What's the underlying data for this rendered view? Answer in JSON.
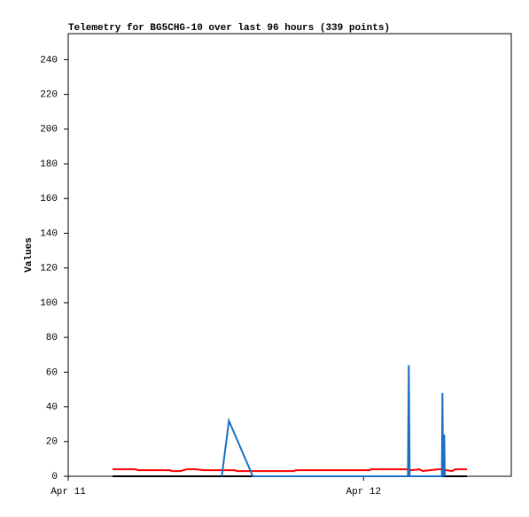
{
  "chart_data": {
    "type": "line",
    "title": "Telemetry for BG5CHG-10 over last 96 hours (339 points)",
    "y_label": "Values",
    "xlim": [
      0,
      1.5
    ],
    "xticks": [
      {
        "value": 0,
        "label": "Apr 11"
      },
      {
        "value": 1,
        "label": "Apr 12"
      }
    ],
    "ylim": [
      0,
      255
    ],
    "yticks": [
      0,
      20,
      40,
      60,
      80,
      100,
      120,
      140,
      160,
      180,
      200,
      220,
      240
    ],
    "grid": false,
    "series": [
      {
        "color": "#ff0000",
        "x": [
          0.15,
          0.23,
          0.235,
          0.345,
          0.35,
          0.38,
          0.4,
          0.43,
          0.46,
          0.565,
          0.57,
          0.635,
          0.64,
          0.765,
          0.77,
          1.02,
          1.025,
          1.155,
          1.16,
          1.19,
          1.2,
          1.25,
          1.26,
          1.3,
          1.31,
          1.35
        ],
        "values": [
          4,
          4,
          3.5,
          3.5,
          3,
          3,
          4,
          4,
          3.5,
          3.5,
          3,
          3,
          3,
          3,
          3.5,
          3.5,
          4,
          4,
          3.5,
          4,
          3,
          4,
          4,
          3,
          4,
          4
        ]
      },
      {
        "color": "#000000",
        "x": [
          0.15,
          1.35
        ],
        "values": [
          0,
          0
        ]
      },
      {
        "color": "#1a6fc4",
        "x": [
          0.52,
          0.544,
          0.625,
          1.15,
          1.153,
          1.156,
          1.265,
          1.267,
          1.269,
          1.273,
          1.275
        ],
        "values": [
          0,
          32,
          0,
          0,
          64,
          0,
          0,
          48,
          0,
          24,
          0
        ]
      }
    ]
  }
}
